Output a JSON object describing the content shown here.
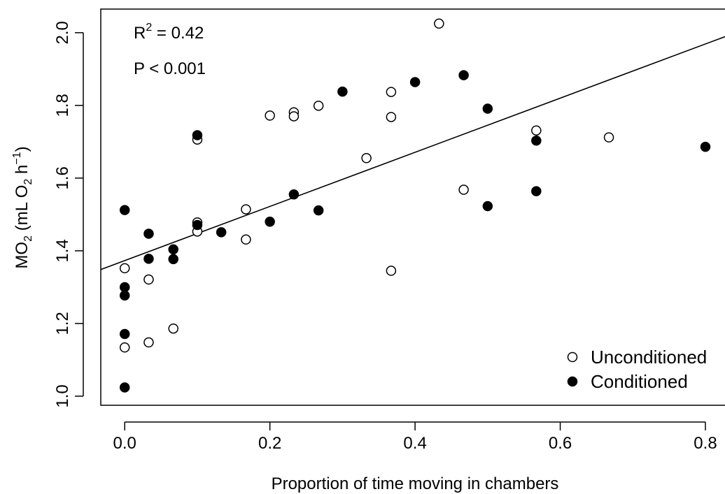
{
  "chart_data": {
    "type": "scatter",
    "title": "",
    "xlabel": "Proportion of time moving in chambers",
    "ylabel": {
      "base": "MO",
      "sub": "2",
      "mid": " (mL O",
      "sub2": "2",
      "mid2": " h",
      "sup": "−1",
      "end": ")"
    },
    "xlim": [
      -0.033,
      0.827
    ],
    "ylim": [
      0.975,
      2.065
    ],
    "x_ticks": [
      {
        "value": 0.0,
        "label": "0.0"
      },
      {
        "value": 0.2,
        "label": "0.2"
      },
      {
        "value": 0.4,
        "label": "0.4"
      },
      {
        "value": 0.6,
        "label": "0.6"
      },
      {
        "value": 0.8,
        "label": "0.8"
      }
    ],
    "y_ticks": [
      {
        "value": 1.0,
        "label": "1.0"
      },
      {
        "value": 1.2,
        "label": "1.2"
      },
      {
        "value": 1.4,
        "label": "1.4"
      },
      {
        "value": 1.6,
        "label": "1.6"
      },
      {
        "value": 1.8,
        "label": "1.8"
      },
      {
        "value": 2.0,
        "label": "2.0"
      }
    ],
    "annotations": {
      "r2": {
        "base": "R",
        "sup": "2",
        "rest": " = 0.42"
      },
      "p": "P < 0.001"
    },
    "regression": {
      "intercept": 1.373,
      "slope": 0.745
    },
    "legend": {
      "position": "bottom-right",
      "entries": [
        {
          "label": "Unconditioned",
          "marker": "open"
        },
        {
          "label": "Conditioned",
          "marker": "filled"
        }
      ]
    },
    "series": [
      {
        "name": "Unconditioned",
        "marker": "open",
        "points": [
          [
            0.0,
            1.352
          ],
          [
            0.0,
            1.134
          ],
          [
            0.033,
            1.321
          ],
          [
            0.033,
            1.148
          ],
          [
            0.067,
            1.186
          ],
          [
            0.1,
            1.706
          ],
          [
            0.1,
            1.478
          ],
          [
            0.1,
            1.453
          ],
          [
            0.167,
            1.514
          ],
          [
            0.167,
            1.431
          ],
          [
            0.2,
            1.772
          ],
          [
            0.233,
            1.781
          ],
          [
            0.233,
            1.77
          ],
          [
            0.267,
            1.799
          ],
          [
            0.333,
            1.655
          ],
          [
            0.367,
            1.837
          ],
          [
            0.367,
            1.768
          ],
          [
            0.367,
            1.345
          ],
          [
            0.433,
            2.025
          ],
          [
            0.467,
            1.568
          ],
          [
            0.567,
            1.731
          ],
          [
            0.667,
            1.712
          ]
        ]
      },
      {
        "name": "Conditioned",
        "marker": "filled",
        "points": [
          [
            0.0,
            1.512
          ],
          [
            0.0,
            1.3
          ],
          [
            0.0,
            1.277
          ],
          [
            0.0,
            1.171
          ],
          [
            0.0,
            1.024
          ],
          [
            0.033,
            1.447
          ],
          [
            0.033,
            1.378
          ],
          [
            0.067,
            1.404
          ],
          [
            0.067,
            1.377
          ],
          [
            0.1,
            1.718
          ],
          [
            0.1,
            1.471
          ],
          [
            0.133,
            1.451
          ],
          [
            0.2,
            1.48
          ],
          [
            0.233,
            1.555
          ],
          [
            0.267,
            1.511
          ],
          [
            0.3,
            1.838
          ],
          [
            0.4,
            1.864
          ],
          [
            0.467,
            1.883
          ],
          [
            0.5,
            1.791
          ],
          [
            0.5,
            1.523
          ],
          [
            0.567,
            1.703
          ],
          [
            0.567,
            1.564
          ],
          [
            0.8,
            1.686
          ]
        ]
      }
    ]
  }
}
